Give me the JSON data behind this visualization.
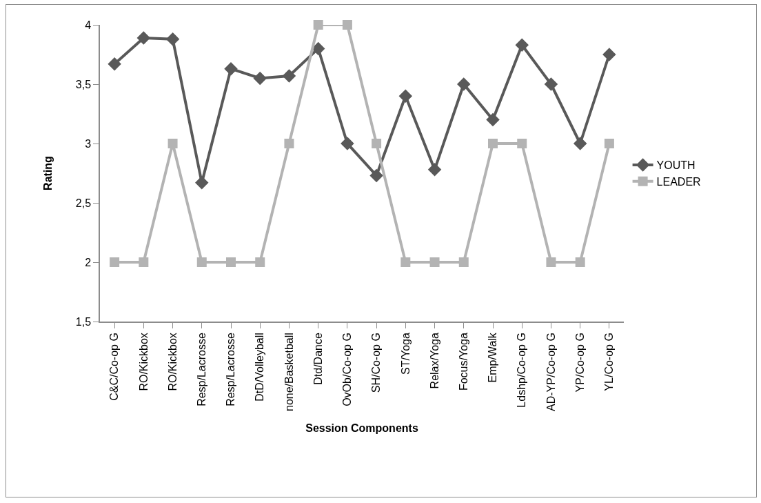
{
  "chart_data": {
    "type": "line",
    "xlabel": "Session Components",
    "ylabel": "Rating",
    "categories": [
      "C&C/Co-op G",
      "RO/Kickbox",
      "RO/Kickbox",
      "Resp/Lacrosse",
      "Resp/Lacrosse",
      "DtD/Volleyball",
      "none/Basketball",
      "Dtd/Dance",
      "OvOb/Co-op G",
      "SH/Co-op G",
      "ST/Yoga",
      "Relax/Yoga",
      "Focus/Yoga",
      "Emp/Walk",
      "Ldshp/Co-op G",
      "AD-YP/Co-op G",
      "YP/Co-op G",
      "YL/Co-op G"
    ],
    "series": [
      {
        "name": "YOUTH",
        "color": "#595959",
        "marker": "diamond",
        "values": [
          3.67,
          3.89,
          3.88,
          2.67,
          3.63,
          3.55,
          3.57,
          3.8,
          3.0,
          2.73,
          3.4,
          2.78,
          3.5,
          3.2,
          3.83,
          3.5,
          3.0,
          3.75
        ]
      },
      {
        "name": "LEADER",
        "color": "#b3b3b3",
        "marker": "square",
        "values": [
          2,
          2,
          3,
          2,
          2,
          2,
          3,
          4,
          4,
          3,
          2,
          2,
          2,
          3,
          3,
          2,
          2,
          3
        ]
      }
    ],
    "ylim": [
      1.5,
      4
    ],
    "yticks": [
      {
        "value": 1.5,
        "label": "1,5"
      },
      {
        "value": 2,
        "label": "2"
      },
      {
        "value": 2.5,
        "label": "2,5"
      },
      {
        "value": 3,
        "label": "3"
      },
      {
        "value": 3.5,
        "label": "3,5"
      },
      {
        "value": 4,
        "label": "4"
      }
    ],
    "grid": false,
    "legend": "right",
    "line_style": "solid"
  }
}
